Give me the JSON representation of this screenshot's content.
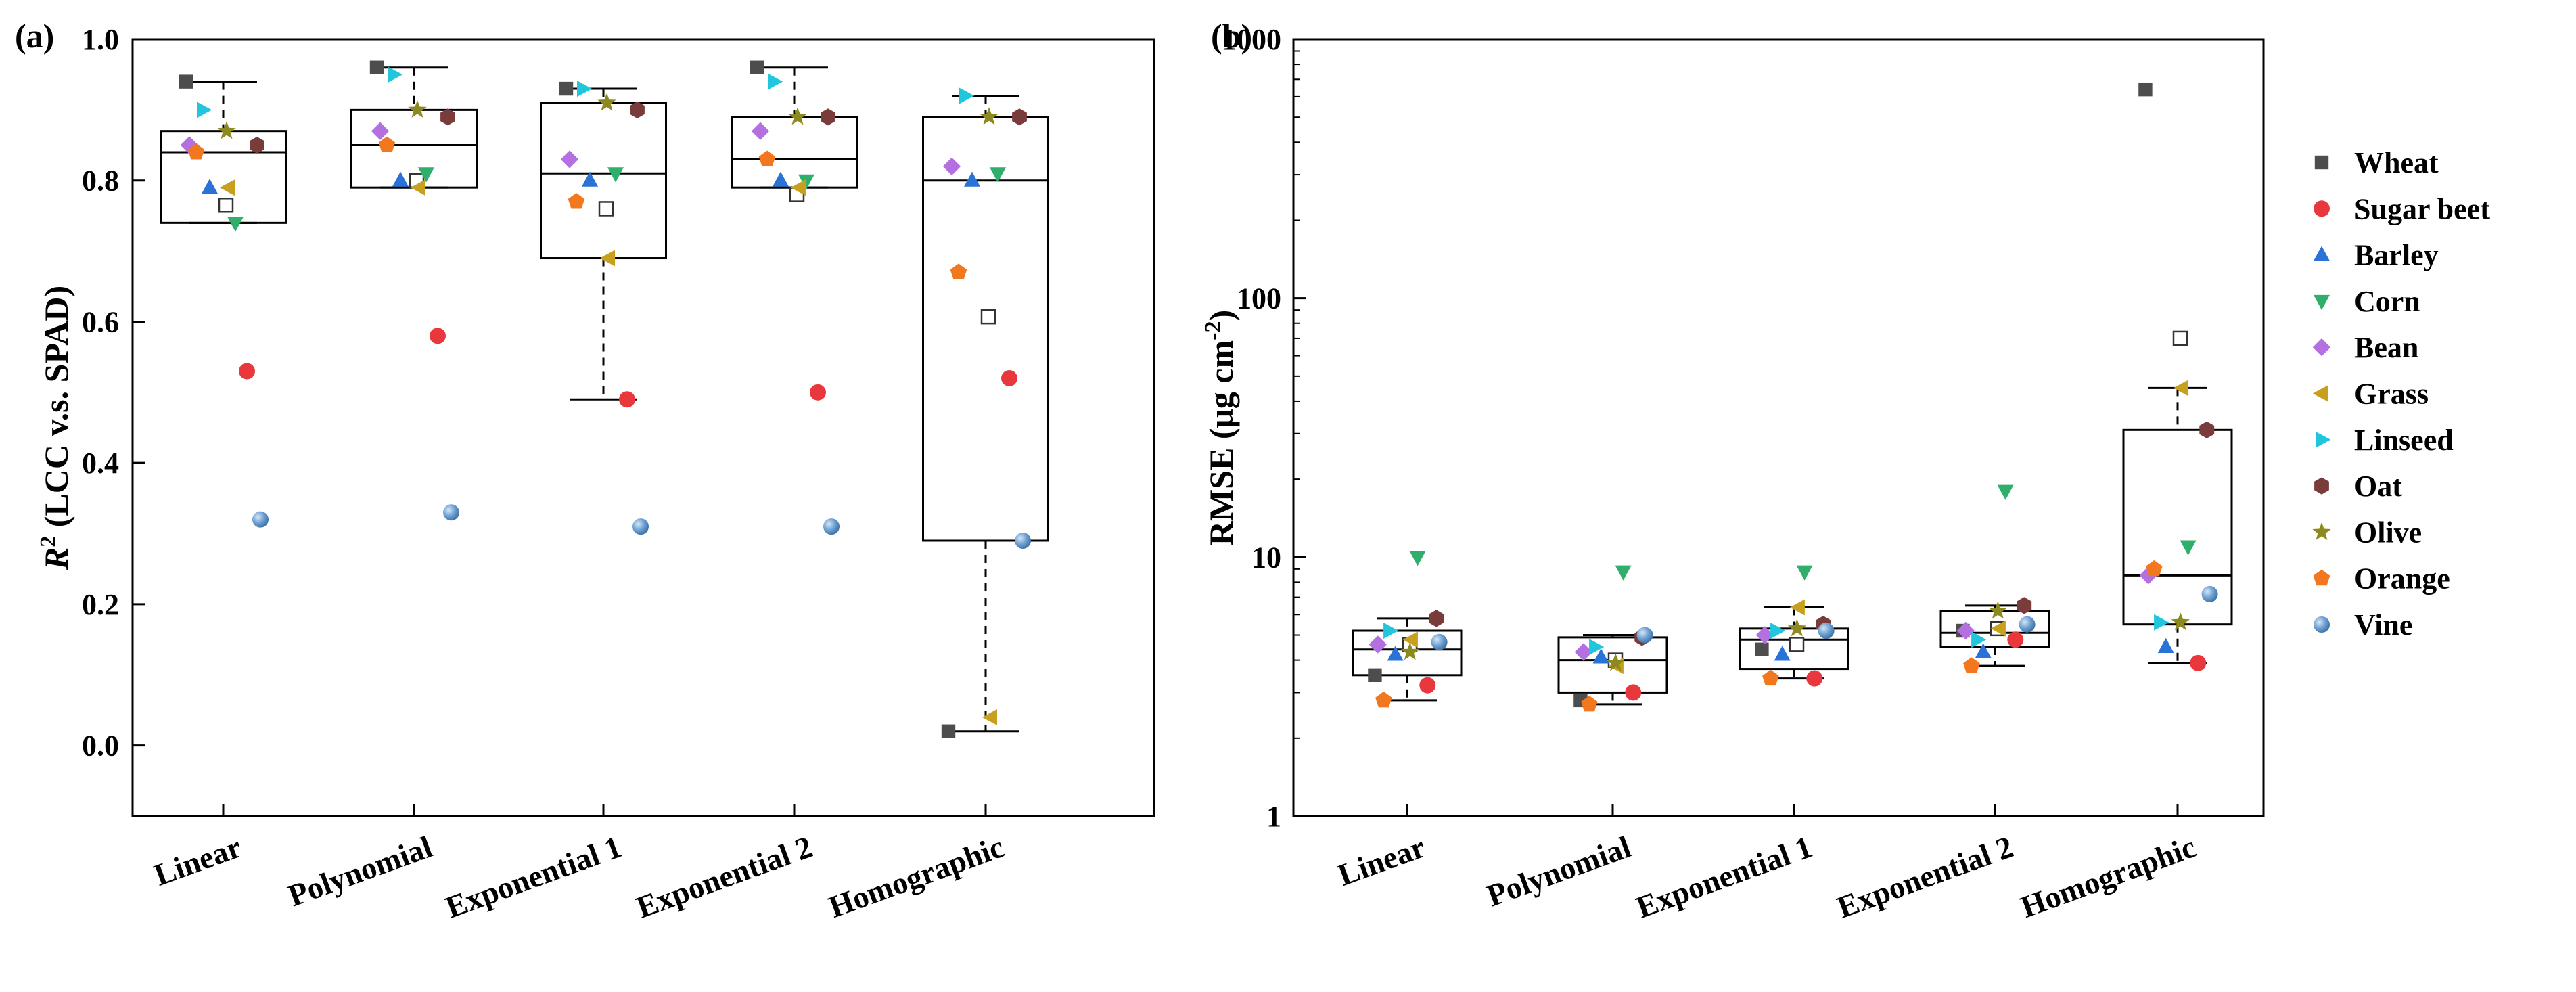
{
  "chart_data": [
    {
      "type": "box",
      "panel_label": "(a)",
      "ylabel_prefix": "R",
      "ylabel_superscript": "2",
      "ylabel_rest": " (LCC v.s. SPAD)",
      "xlabel": "",
      "yscale": "linear",
      "ylim": [
        -0.1,
        1.0
      ],
      "yticks": [
        "0.0",
        "0.2",
        "0.4",
        "0.6",
        "0.8",
        "1.0"
      ],
      "ytick_values": [
        0.0,
        0.2,
        0.4,
        0.6,
        0.8,
        1.0
      ],
      "categories": [
        "Linear",
        "Polynomial",
        "Exponential 1",
        "Exponential 2",
        "Homographic"
      ],
      "boxes": [
        {
          "q1": 0.74,
          "median": 0.84,
          "q3": 0.87,
          "whisker_low": 0.74,
          "whisker_high": 0.94,
          "mean": 0.765
        },
        {
          "q1": 0.79,
          "median": 0.85,
          "q3": 0.9,
          "whisker_low": 0.79,
          "whisker_high": 0.96,
          "mean": 0.8
        },
        {
          "q1": 0.69,
          "median": 0.81,
          "q3": 0.91,
          "whisker_low": 0.49,
          "whisker_high": 0.93,
          "mean": 0.76
        },
        {
          "q1": 0.79,
          "median": 0.83,
          "q3": 0.89,
          "whisker_low": 0.79,
          "whisker_high": 0.96,
          "mean": 0.78
        },
        {
          "q1": 0.29,
          "median": 0.8,
          "q3": 0.89,
          "whisker_low": 0.02,
          "whisker_high": 0.92,
          "mean": 0.607
        }
      ],
      "series": [
        {
          "name": "Wheat",
          "values": [
            0.94,
            0.96,
            0.93,
            0.96,
            0.02
          ]
        },
        {
          "name": "Sugar beet",
          "values": [
            0.53,
            0.58,
            0.49,
            0.5,
            0.52
          ]
        },
        {
          "name": "Barley",
          "values": [
            0.79,
            0.8,
            0.8,
            0.8,
            0.8
          ]
        },
        {
          "name": "Corn",
          "values": [
            0.74,
            0.81,
            0.81,
            0.8,
            0.81
          ]
        },
        {
          "name": "Bean",
          "values": [
            0.85,
            0.87,
            0.83,
            0.87,
            0.82
          ]
        },
        {
          "name": "Grass",
          "values": [
            0.79,
            0.79,
            0.69,
            0.79,
            0.04
          ]
        },
        {
          "name": "Linseed",
          "values": [
            0.9,
            0.95,
            0.93,
            0.94,
            0.92
          ]
        },
        {
          "name": "Oat",
          "values": [
            0.85,
            0.89,
            0.9,
            0.89,
            0.89
          ]
        },
        {
          "name": "Olive",
          "values": [
            0.87,
            0.9,
            0.91,
            0.89,
            0.89
          ]
        },
        {
          "name": "Orange",
          "values": [
            0.84,
            0.85,
            0.77,
            0.83,
            0.67
          ]
        },
        {
          "name": "Vine",
          "values": [
            0.32,
            0.33,
            0.31,
            0.31,
            0.29
          ]
        }
      ]
    },
    {
      "type": "box",
      "panel_label": "(b)",
      "ylabel_prefix": "RMSE (μg cm",
      "ylabel_superscript": "-2",
      "ylabel_rest": ")",
      "xlabel": "",
      "yscale": "log",
      "ylim": [
        1,
        1000
      ],
      "yticks": [
        "1",
        "10",
        "100",
        "1000"
      ],
      "ytick_values": [
        1,
        10,
        100,
        1000
      ],
      "categories": [
        "Linear",
        "Polynomial",
        "Exponential 1",
        "Exponential 2",
        "Homographic"
      ],
      "boxes": [
        {
          "q1": 3.5,
          "median": 4.4,
          "q3": 5.2,
          "whisker_low": 2.8,
          "whisker_high": 5.8,
          "mean": 4.6
        },
        {
          "q1": 3.0,
          "median": 4.0,
          "q3": 4.9,
          "whisker_low": 2.7,
          "whisker_high": 5.0,
          "mean": 4.0
        },
        {
          "q1": 3.7,
          "median": 4.8,
          "q3": 5.3,
          "whisker_low": 3.4,
          "whisker_high": 6.4,
          "mean": 4.6
        },
        {
          "q1": 4.5,
          "median": 5.1,
          "q3": 6.2,
          "whisker_low": 3.8,
          "whisker_high": 6.5,
          "mean": 5.3
        },
        {
          "q1": 5.5,
          "median": 8.5,
          "q3": 31,
          "whisker_low": 3.9,
          "whisker_high": 45,
          "mean": 70
        }
      ],
      "series": [
        {
          "name": "Wheat",
          "values": [
            3.5,
            2.8,
            4.4,
            5.2,
            640
          ]
        },
        {
          "name": "Sugar beet",
          "values": [
            3.2,
            3.0,
            3.4,
            4.8,
            3.9
          ]
        },
        {
          "name": "Barley",
          "values": [
            4.2,
            4.1,
            4.2,
            4.3,
            4.5
          ]
        },
        {
          "name": "Corn",
          "values": [
            10,
            8.8,
            8.8,
            18,
            11
          ]
        },
        {
          "name": "Bean",
          "values": [
            4.6,
            4.3,
            5.0,
            5.2,
            8.5
          ]
        },
        {
          "name": "Grass",
          "values": [
            4.8,
            3.8,
            6.4,
            5.3,
            45
          ]
        },
        {
          "name": "Linseed",
          "values": [
            5.2,
            4.5,
            5.2,
            4.8,
            5.6
          ]
        },
        {
          "name": "Oat",
          "values": [
            5.8,
            4.9,
            5.5,
            6.5,
            31
          ]
        },
        {
          "name": "Olive",
          "values": [
            4.3,
            3.9,
            5.3,
            6.2,
            5.6
          ]
        },
        {
          "name": "Orange",
          "values": [
            2.8,
            2.7,
            3.4,
            3.8,
            9.0
          ]
        },
        {
          "name": "Vine",
          "values": [
            4.7,
            5.0,
            5.2,
            5.5,
            7.2
          ]
        }
      ],
      "legend": {
        "position": "right",
        "entries": [
          {
            "name": "Wheat",
            "marker": "square",
            "color": "#4d4d4d"
          },
          {
            "name": "Sugar beet",
            "marker": "circle",
            "color": "#e8383d"
          },
          {
            "name": "Barley",
            "marker": "triangle-up",
            "color": "#2a72d6"
          },
          {
            "name": "Corn",
            "marker": "triangle-down",
            "color": "#2fae6c"
          },
          {
            "name": "Bean",
            "marker": "diamond",
            "color": "#b46fe0"
          },
          {
            "name": "Grass",
            "marker": "triangle-left",
            "color": "#c8a020"
          },
          {
            "name": "Linseed",
            "marker": "triangle-right",
            "color": "#22c6dc"
          },
          {
            "name": "Oat",
            "marker": "hexagon",
            "color": "#7a3b3b"
          },
          {
            "name": "Olive",
            "marker": "star",
            "color": "#8c8a1e"
          },
          {
            "name": "Orange",
            "marker": "pentagon",
            "color": "#f2781f"
          },
          {
            "name": "Vine",
            "marker": "sphere",
            "color": "#6c9fd2"
          }
        ]
      }
    }
  ]
}
